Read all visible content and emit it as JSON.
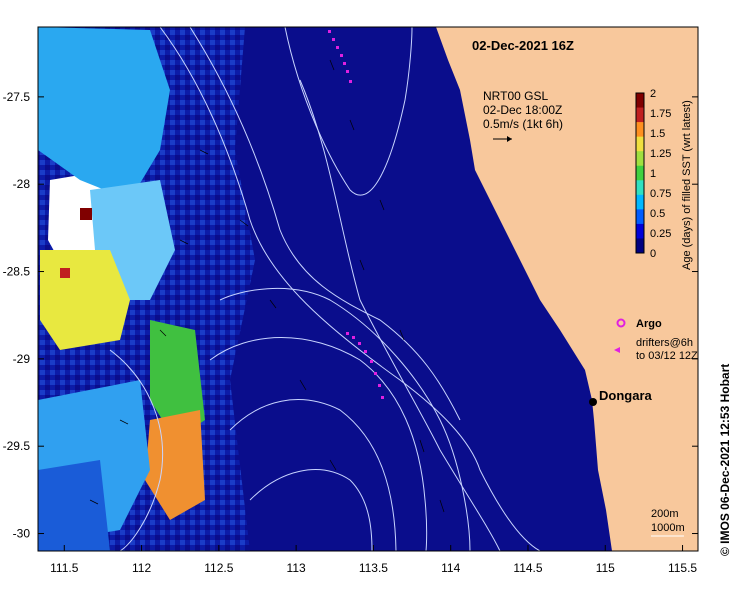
{
  "map": {
    "title": "02-Dec-2021 16Z",
    "credit": "©  IMOS 06-Dec-2021 12:53 Hobart",
    "place": {
      "name": "Dongara",
      "lon": 114.93,
      "lat": -29.25
    },
    "lon_ticks": [
      "111.5",
      "112",
      "112.5",
      "113",
      "113.5",
      "114",
      "114.5",
      "115",
      "115.5"
    ],
    "lat_ticks": [
      "-27.5",
      "-28",
      "-28.5",
      "-29",
      "-29.5",
      "-30"
    ],
    "lon_range": [
      111.33,
      115.6
    ],
    "lat_range": [
      -30.1,
      -27.1
    ],
    "colors": {
      "ocean_fresh": "#0a0d8c",
      "land": "#f8c89c",
      "contour": "#c8d4ff",
      "argo": "#e020e0"
    }
  },
  "currents": {
    "source": "NRT00 GSL",
    "time": "02-Dec 18:00Z",
    "scale": "0.5m/s (1kt 6h)"
  },
  "legend": {
    "label": "Age (days) of filled SST (wrt latest)",
    "ticks": [
      "2",
      "1.75",
      "1.5",
      "1.25",
      "1",
      "0.75",
      "0.5",
      "0.25",
      "0"
    ],
    "colors": [
      "#000080",
      "#0000d8",
      "#005cff",
      "#00b8ff",
      "#30e0c0",
      "#40d040",
      "#a0e040",
      "#f0e040",
      "#ff9020",
      "#c02020",
      "#800000"
    ]
  },
  "drifter_legend": {
    "argo": "Argo",
    "drifters_line1": "drifters@6h",
    "drifters_line2": "to 03/12 12Z"
  },
  "isobaths": {
    "line1": "200m",
    "line2": "1000m"
  }
}
